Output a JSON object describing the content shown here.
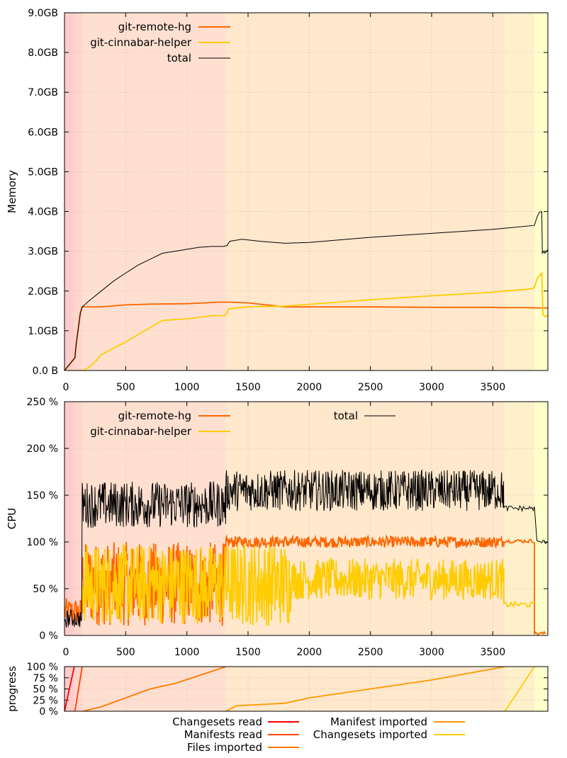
{
  "chart_data": [
    {
      "type": "line",
      "ylabel": "Memory",
      "xlim": [
        0,
        3950
      ],
      "ylim": [
        0,
        9
      ],
      "x_ticks": [
        0,
        500,
        1000,
        1500,
        2000,
        2500,
        3000,
        3500
      ],
      "x_tick_labels": [
        "0",
        "500",
        "1000",
        "1500",
        "2000",
        "2500",
        "3000",
        "3500"
      ],
      "y_ticks": [
        0,
        1,
        2,
        3,
        4,
        5,
        6,
        7,
        8,
        9
      ],
      "y_tick_labels": [
        "0.0 B",
        "1.0GB",
        "2.0GB",
        "3.0GB",
        "4.0GB",
        "5.0GB",
        "6.0GB",
        "7.0GB",
        "8.0GB",
        "9.0GB"
      ],
      "grid": true,
      "legend": "top-left",
      "series": [
        {
          "name": "git-remote-hg",
          "color": "#ff6600",
          "x": [
            0,
            85,
            95,
            130,
            145,
            300,
            500,
            700,
            1000,
            1200,
            1250,
            1350,
            1500,
            1800,
            2500,
            3000,
            3500,
            3550,
            3800,
            3950
          ],
          "y": [
            0,
            0.32,
            0.65,
            1.45,
            1.6,
            1.6,
            1.65,
            1.67,
            1.68,
            1.71,
            1.72,
            1.72,
            1.7,
            1.6,
            1.6,
            1.59,
            1.59,
            1.58,
            1.58,
            1.57
          ]
        },
        {
          "name": "git-cinnabar-helper",
          "color": "#ffcc00",
          "x": [
            0,
            150,
            200,
            260,
            300,
            500,
            700,
            800,
            1000,
            1200,
            1300,
            1320,
            1340,
            1500,
            1800,
            2500,
            3000,
            3500,
            3600,
            3800,
            3840,
            3860,
            3900,
            3910,
            3930,
            3950
          ],
          "y": [
            0,
            0,
            0.08,
            0.25,
            0.4,
            0.72,
            1.08,
            1.26,
            1.3,
            1.38,
            1.38,
            1.4,
            1.55,
            1.6,
            1.62,
            1.78,
            1.88,
            1.97,
            2.0,
            2.05,
            2.08,
            2.3,
            2.45,
            1.4,
            1.35,
            1.4
          ]
        },
        {
          "name": "total",
          "color": "#000000",
          "x": [
            0,
            85,
            95,
            130,
            145,
            200,
            300,
            400,
            500,
            600,
            700,
            800,
            900,
            1000,
            1100,
            1200,
            1300,
            1330,
            1350,
            1450,
            1600,
            1800,
            2000,
            2500,
            3000,
            3500,
            3600,
            3840,
            3860,
            3880,
            3900,
            3905,
            3915,
            3925,
            3940,
            3950
          ],
          "y": [
            0,
            0.32,
            0.65,
            1.45,
            1.6,
            1.75,
            2.0,
            2.25,
            2.45,
            2.65,
            2.8,
            2.95,
            3.0,
            3.05,
            3.1,
            3.12,
            3.12,
            3.15,
            3.25,
            3.3,
            3.25,
            3.2,
            3.22,
            3.35,
            3.45,
            3.55,
            3.58,
            3.65,
            3.85,
            3.98,
            4.0,
            2.95,
            3.0,
            2.95,
            3.0,
            3.05
          ]
        }
      ]
    },
    {
      "type": "line",
      "ylabel": "CPU",
      "xlim": [
        0,
        3950
      ],
      "ylim": [
        0,
        250
      ],
      "x_ticks": [
        0,
        500,
        1000,
        1500,
        2000,
        2500,
        3000,
        3500
      ],
      "x_tick_labels": [
        "0",
        "500",
        "1000",
        "1500",
        "2000",
        "2500",
        "3000",
        "3500"
      ],
      "y_ticks": [
        0,
        50,
        100,
        150,
        200,
        250
      ],
      "y_tick_labels": [
        "0 %",
        "50 %",
        "100 %",
        "150 %",
        "200 %",
        "250 %"
      ],
      "grid": true,
      "legend": "top-left",
      "series": [
        {
          "name": "git-remote-hg",
          "color": "#ff6600",
          "style": "noisy",
          "segments": [
            {
              "x0": 0,
              "x1": 140,
              "base": 25,
              "amp": 15,
              "step": 5
            },
            {
              "x0": 145,
              "x1": 1320,
              "base": 55,
              "amp": 45,
              "step": 4
            },
            {
              "x0": 1320,
              "x1": 3590,
              "base": 100,
              "amp": 6,
              "step": 5
            },
            {
              "x0": 3590,
              "x1": 3840,
              "base": 101,
              "amp": 2,
              "step": 10
            },
            {
              "x0": 3840,
              "x1": 3930,
              "base": 2,
              "amp": 2,
              "step": 10
            }
          ]
        },
        {
          "name": "git-cinnabar-helper",
          "color": "#ffcc00",
          "style": "noisy",
          "segments": [
            {
              "x0": 145,
              "x1": 1320,
              "base": 55,
              "amp": 43,
              "step": 4
            },
            {
              "x0": 1320,
              "x1": 1850,
              "base": 55,
              "amp": 45,
              "step": 4
            },
            {
              "x0": 1850,
              "x1": 3590,
              "base": 60,
              "amp": 22,
              "step": 5
            },
            {
              "x0": 3590,
              "x1": 3840,
              "base": 33,
              "amp": 3,
              "step": 10
            }
          ]
        },
        {
          "name": "total",
          "color": "#000000",
          "style": "noisy",
          "segments": [
            {
              "x0": 0,
              "x1": 140,
              "base": 18,
              "amp": 10,
              "step": 5
            },
            {
              "x0": 145,
              "x1": 1320,
              "base": 140,
              "amp": 25,
              "step": 4
            },
            {
              "x0": 1320,
              "x1": 3590,
              "base": 155,
              "amp": 22,
              "step": 4
            },
            {
              "x0": 3590,
              "x1": 3840,
              "base": 136,
              "amp": 3,
              "step": 10
            },
            {
              "x0": 3860,
              "x1": 3950,
              "base": 100,
              "amp": 2,
              "step": 10
            }
          ]
        }
      ]
    },
    {
      "type": "line",
      "ylabel": "progress",
      "xlim": [
        0,
        3950
      ],
      "ylim": [
        0,
        100
      ],
      "y_ticks": [
        0,
        25,
        50,
        75,
        100
      ],
      "y_tick_labels": [
        "0 %",
        "25 %",
        "50 %",
        "75 %",
        "100 %"
      ],
      "grid": true,
      "legend": "bottom",
      "series": [
        {
          "name": "Changesets read",
          "color": "#ff0000",
          "x": [
            0,
            80
          ],
          "y": [
            0,
            100
          ]
        },
        {
          "name": "Manifests read",
          "color": "#ff4400",
          "x": [
            85,
            145
          ],
          "y": [
            0,
            100
          ]
        },
        {
          "name": "Files imported",
          "color": "#ff7700",
          "x": [
            150,
            300,
            500,
            700,
            900,
            1100,
            1320
          ],
          "y": [
            0,
            10,
            30,
            50,
            62,
            80,
            100
          ]
        },
        {
          "name": "Manifest imported",
          "color": "#ff9900",
          "x": [
            1320,
            1400,
            1800,
            2000,
            2500,
            3000,
            3600
          ],
          "y": [
            0,
            12,
            18,
            30,
            50,
            70,
            100
          ]
        },
        {
          "name": "Changesets imported",
          "color": "#ffcc00",
          "x": [
            3600,
            3840
          ],
          "y": [
            0,
            100
          ]
        }
      ]
    }
  ],
  "phases": [
    {
      "x0": 0,
      "x1": 80,
      "color": "#ffcccc"
    },
    {
      "x0": 80,
      "x1": 145,
      "color": "#ffd5cc"
    },
    {
      "x0": 145,
      "x1": 1320,
      "color": "#ffe0d0"
    },
    {
      "x0": 1320,
      "x1": 3600,
      "color": "#ffe8cc"
    },
    {
      "x0": 3600,
      "x1": 3840,
      "color": "#fff0cc"
    },
    {
      "x0": 3840,
      "x1": 3950,
      "color": "#ffffcc"
    }
  ]
}
